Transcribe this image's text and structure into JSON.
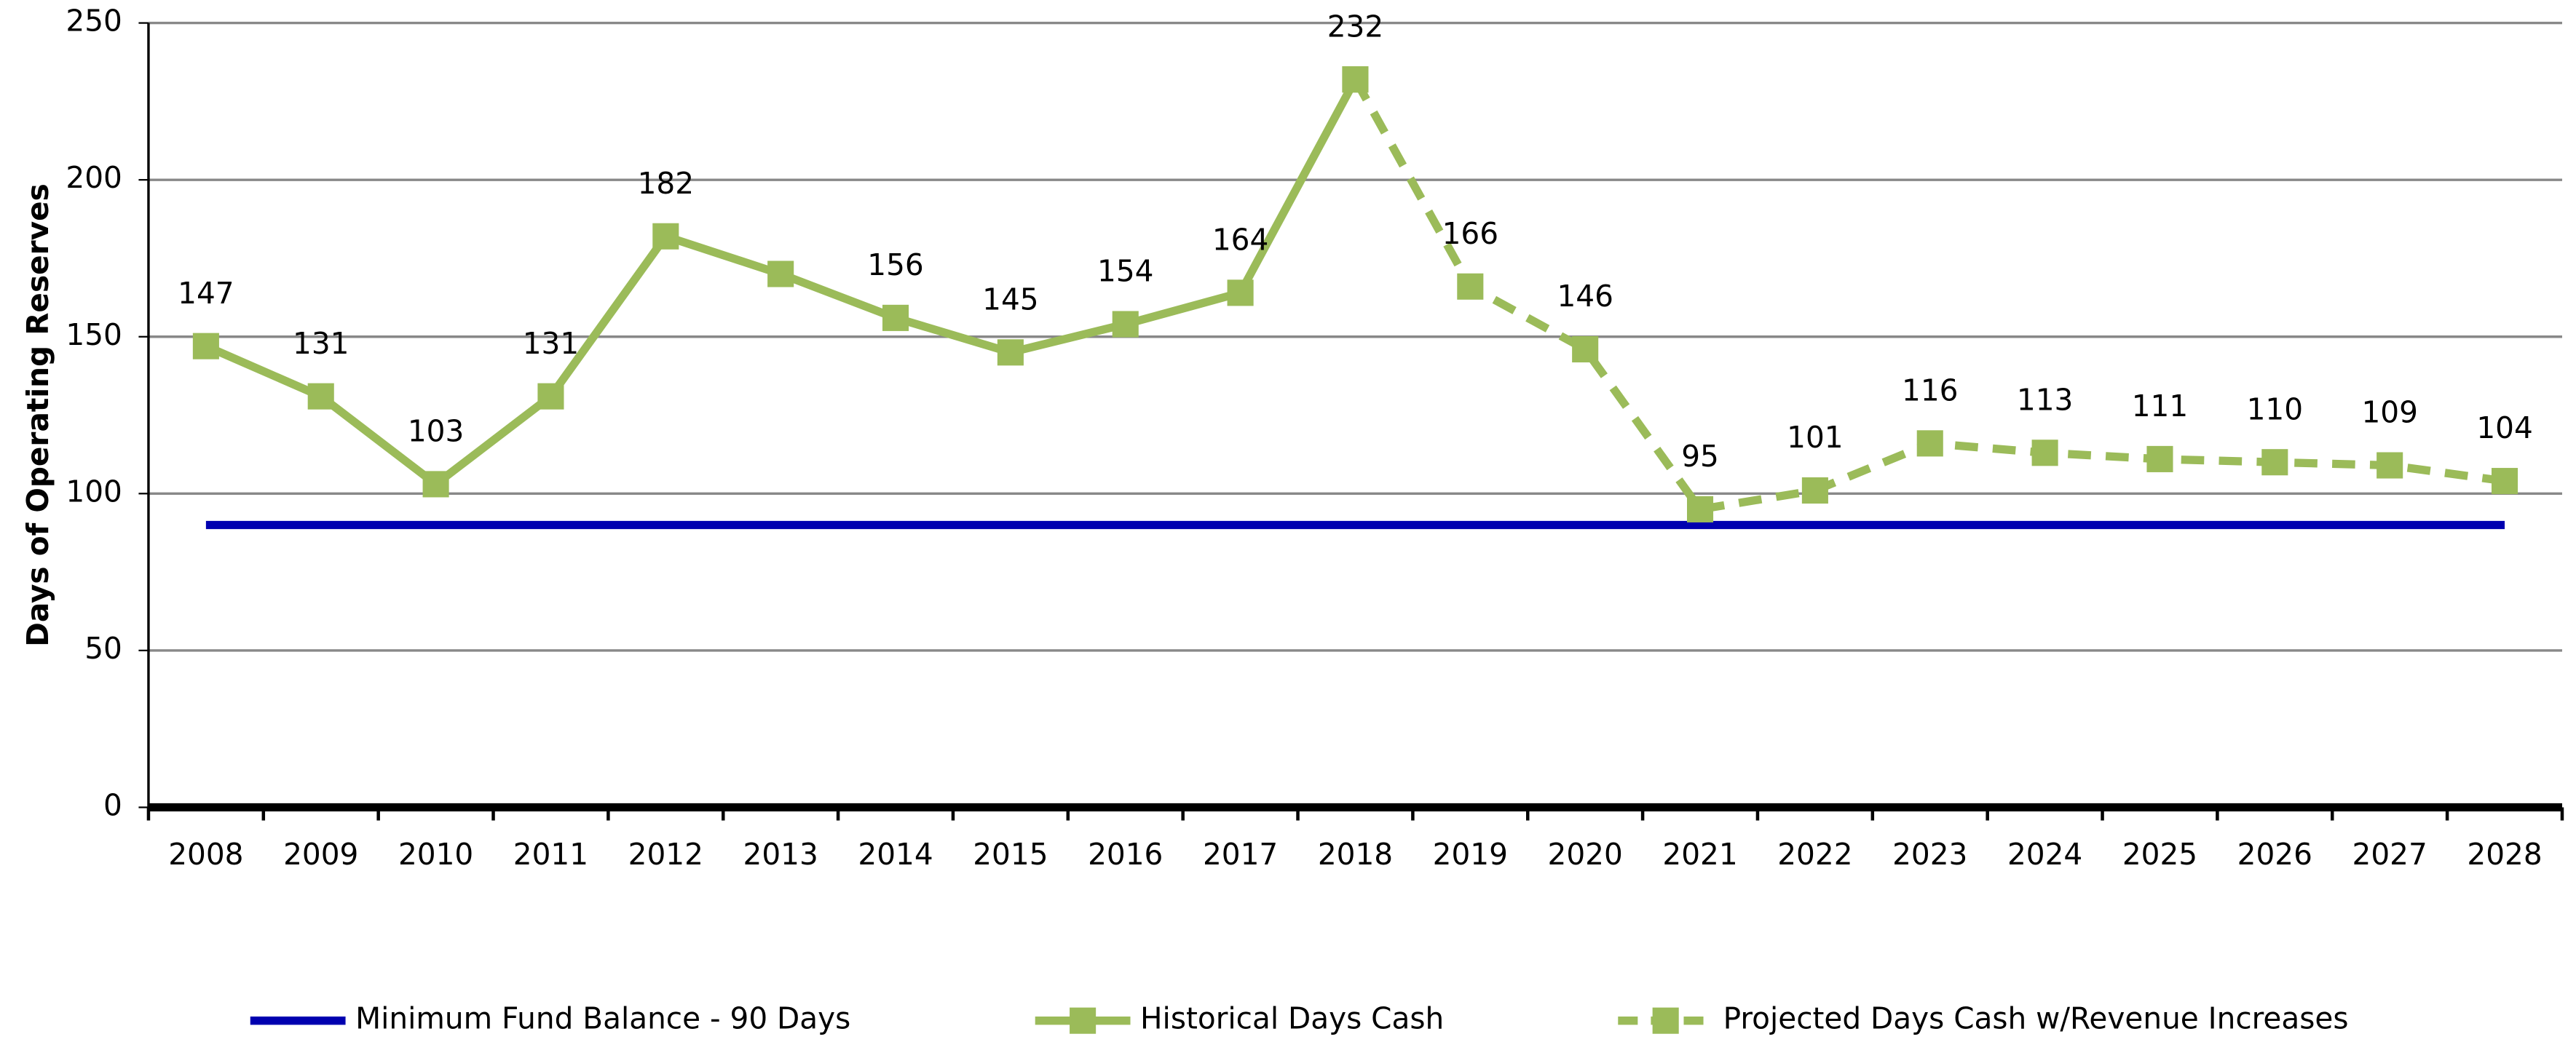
{
  "chart_data": {
    "type": "line",
    "y_label": "Days of Operating Reserves",
    "categories": [
      "2008",
      "2009",
      "2010",
      "2011",
      "2012",
      "2013",
      "2014",
      "2015",
      "2016",
      "2017",
      "2018",
      "2019",
      "2020",
      "2021",
      "2022",
      "2023",
      "2024",
      "2025",
      "2026",
      "2027",
      "2028"
    ],
    "series": [
      {
        "name": "Minimum Fund Balance - 90 Days",
        "color": "#0000b0",
        "style": "solid",
        "marker": null,
        "values": [
          90,
          90,
          90,
          90,
          90,
          90,
          90,
          90,
          90,
          90,
          90,
          90,
          90,
          90,
          90,
          90,
          90,
          90,
          90,
          90,
          90
        ]
      },
      {
        "name": "Historical Days Cash",
        "color": "#9bbb59",
        "style": "solid",
        "marker": "square",
        "values": [
          147,
          131,
          103,
          131,
          182,
          170,
          156,
          145,
          154,
          164,
          232,
          null,
          null,
          null,
          null,
          null,
          null,
          null,
          null,
          null,
          null
        ],
        "value_labels": [
          "147",
          "131",
          "103",
          "131",
          "182",
          null,
          "156",
          "145",
          "154",
          "164",
          "232",
          null,
          null,
          null,
          null,
          null,
          null,
          null,
          null,
          null,
          null
        ]
      },
      {
        "name": "Projected Days Cash w/Revenue Increases",
        "color": "#9bbb59",
        "style": "dashed",
        "marker": "square",
        "values": [
          null,
          null,
          null,
          null,
          null,
          null,
          null,
          null,
          null,
          null,
          232,
          166,
          146,
          95,
          101,
          116,
          113,
          111,
          110,
          109,
          104
        ],
        "value_labels": [
          null,
          null,
          null,
          null,
          null,
          null,
          null,
          null,
          null,
          null,
          null,
          "166",
          "146",
          "95",
          "101",
          "116",
          "113",
          "111",
          "110",
          "109",
          "104"
        ]
      }
    ],
    "ylim": [
      0,
      250
    ],
    "yticks": [
      0,
      50,
      100,
      150,
      200,
      250
    ],
    "grid": true,
    "legend": "bottom"
  }
}
